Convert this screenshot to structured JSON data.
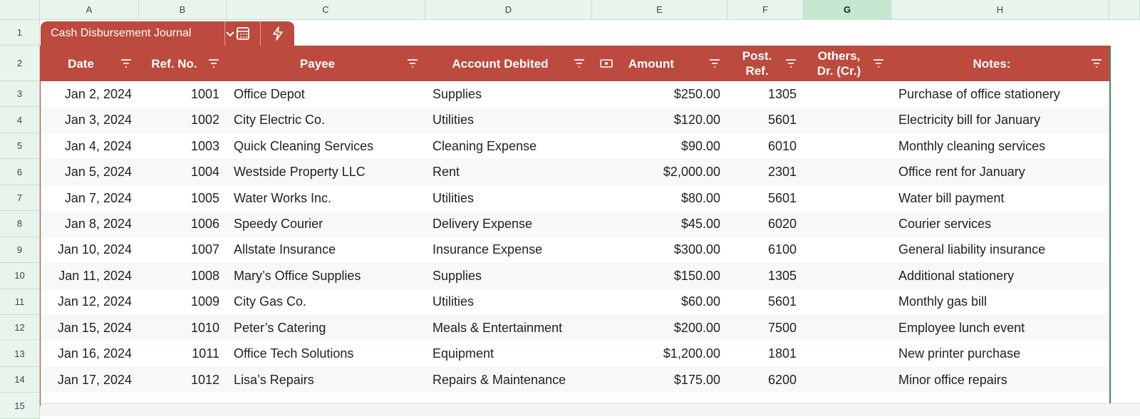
{
  "column_headers": [
    "A",
    "B",
    "C",
    "D",
    "E",
    "F",
    "G",
    "H"
  ],
  "selected_column": "G",
  "row_numbers": [
    1,
    2,
    3,
    4,
    5,
    6,
    7,
    8,
    9,
    10,
    11,
    12,
    13,
    14,
    15
  ],
  "table_name": "Cash Disbursement Journal",
  "table": {
    "headers": [
      "Date",
      "Ref. No.",
      "Payee",
      "Account Debited",
      "Amount",
      "Post. Ref.",
      "Others, Dr. (Cr.)",
      "Notes:"
    ],
    "rows": [
      {
        "date": "Jan 2, 2024",
        "ref_no": "1001",
        "payee": "Office Depot",
        "account": "Supplies",
        "amount": "$250.00",
        "post_ref": "1305",
        "notes": "Purchase of office stationery"
      },
      {
        "date": "Jan 3, 2024",
        "ref_no": "1002",
        "payee": "City Electric Co.",
        "account": "Utilities",
        "amount": "$120.00",
        "post_ref": "5601",
        "notes": "Electricity bill for January"
      },
      {
        "date": "Jan 4, 2024",
        "ref_no": "1003",
        "payee": "Quick Cleaning Services",
        "account": "Cleaning Expense",
        "amount": "$90.00",
        "post_ref": "6010",
        "notes": "Monthly cleaning services"
      },
      {
        "date": "Jan 5, 2024",
        "ref_no": "1004",
        "payee": "Westside Property LLC",
        "account": "Rent",
        "amount": "$2,000.00",
        "post_ref": "2301",
        "notes": "Office rent for January"
      },
      {
        "date": "Jan 7, 2024",
        "ref_no": "1005",
        "payee": "Water Works Inc.",
        "account": "Utilities",
        "amount": "$80.00",
        "post_ref": "5601",
        "notes": "Water bill payment"
      },
      {
        "date": "Jan 8, 2024",
        "ref_no": "1006",
        "payee": "Speedy Courier",
        "account": "Delivery Expense",
        "amount": "$45.00",
        "post_ref": "6020",
        "notes": "Courier services"
      },
      {
        "date": "Jan 10, 2024",
        "ref_no": "1007",
        "payee": "Allstate Insurance",
        "account": "Insurance Expense",
        "amount": "$300.00",
        "post_ref": "6100",
        "notes": "General liability insurance"
      },
      {
        "date": "Jan 11, 2024",
        "ref_no": "1008",
        "payee": "Mary’s Office Supplies",
        "account": "Supplies",
        "amount": "$150.00",
        "post_ref": "1305",
        "notes": "Additional stationery"
      },
      {
        "date": "Jan 12, 2024",
        "ref_no": "1009",
        "payee": "City Gas Co.",
        "account": "Utilities",
        "amount": "$60.00",
        "post_ref": "5601",
        "notes": "Monthly gas bill"
      },
      {
        "date": "Jan 15, 2024",
        "ref_no": "1010",
        "payee": "Peter’s Catering",
        "account": "Meals & Entertainment",
        "amount": "$200.00",
        "post_ref": "7500",
        "notes": "Employee lunch event"
      },
      {
        "date": "Jan 16, 2024",
        "ref_no": "1011",
        "payee": "Office Tech Solutions",
        "account": "Equipment",
        "amount": "$1,200.00",
        "post_ref": "1801",
        "notes": "New printer purchase"
      },
      {
        "date": "Jan 17, 2024",
        "ref_no": "1012",
        "payee": "Lisa’s Repairs",
        "account": "Repairs & Maintenance",
        "amount": "$175.00",
        "post_ref": "6200",
        "notes": "Minor office repairs"
      }
    ]
  }
}
